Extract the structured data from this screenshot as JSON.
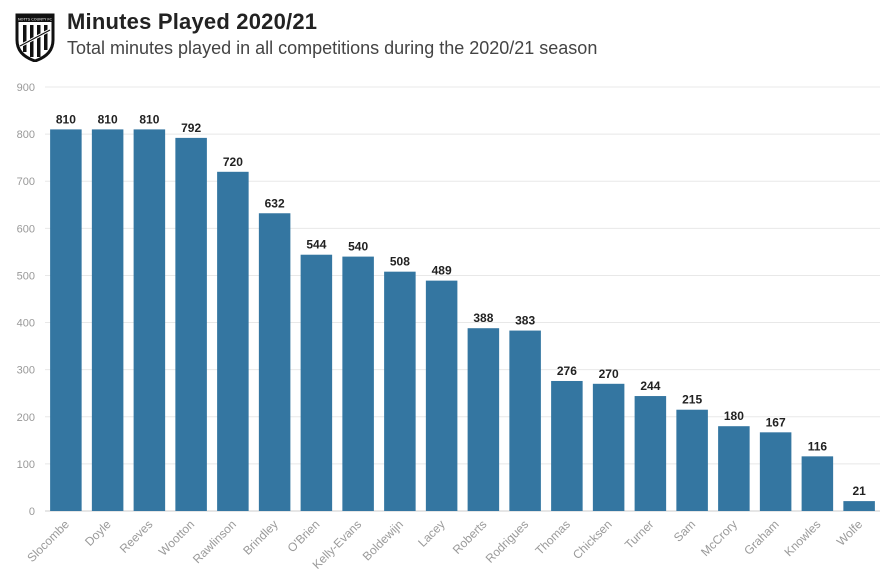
{
  "header": {
    "title": "Minutes Played 2020/21",
    "subtitle": "Total minutes played in all competitions during the 2020/21 season",
    "logo_text": "NOTTS COUNTY FC"
  },
  "colors": {
    "bar": "#3476a1",
    "grid": "#e8e8e8",
    "baseline": "#cccccc"
  },
  "chart_data": {
    "type": "bar",
    "title": "Minutes Played 2020/21",
    "subtitle": "Total minutes played in all competitions during the 2020/21 season",
    "xlabel": "",
    "ylabel": "",
    "ylim": [
      0,
      900
    ],
    "yticks": [
      0,
      100,
      200,
      300,
      400,
      500,
      600,
      700,
      800,
      900
    ],
    "grid": true,
    "categories": [
      "Slocombe",
      "Doyle",
      "Reeves",
      "Wootton",
      "Rawlinson",
      "Brindley",
      "O'Brien",
      "Kelly-Evans",
      "Boldewijn",
      "Lacey",
      "Roberts",
      "Rodrigues",
      "Thomas",
      "Chicksen",
      "Turner",
      "Sam",
      "McCrory",
      "Graham",
      "Knowles",
      "Wolfe"
    ],
    "values": [
      810,
      810,
      810,
      792,
      720,
      632,
      544,
      540,
      508,
      489,
      388,
      383,
      276,
      270,
      244,
      215,
      180,
      167,
      116,
      21
    ]
  }
}
